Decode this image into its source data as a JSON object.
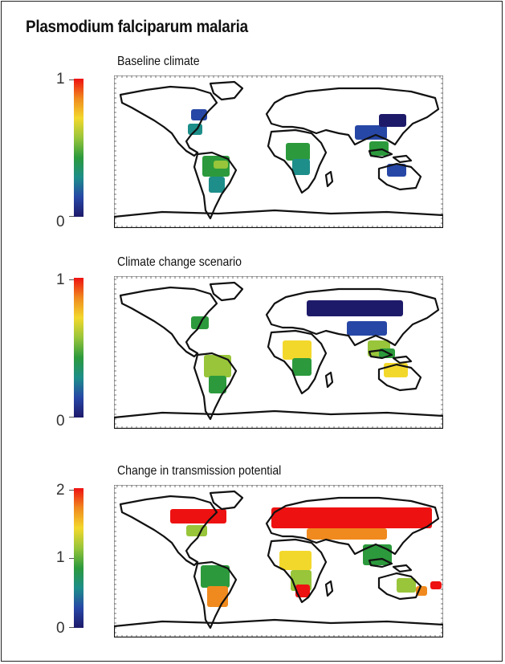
{
  "title": "Plasmodium falciparum malaria",
  "panels": [
    {
      "title": "Baseline climate",
      "scale": {
        "max": "1",
        "min": "0"
      },
      "palette": [
        "#ee1111",
        "#f08a1e",
        "#f3d82c",
        "#98c53a",
        "#2c9a3c",
        "#1d8e8a",
        "#2747a6",
        "#1e1a6a"
      ]
    },
    {
      "title": "Climate change scenario",
      "scale": {
        "max": "1",
        "min": "0"
      },
      "palette": [
        "#ee1111",
        "#f08a1e",
        "#f3d82c",
        "#98c53a",
        "#2c9a3c",
        "#1d8e8a",
        "#2747a6",
        "#1e1a6a"
      ]
    },
    {
      "title": "Change in transmission potential",
      "scale": {
        "max": "2",
        "mid": "1",
        "min": "0"
      },
      "palette": [
        "#ee1111",
        "#f08a1e",
        "#f3d82c",
        "#98c53a",
        "#2c9a3c",
        "#1d8e8a",
        "#2747a6",
        "#1e1a6a"
      ]
    }
  ]
}
